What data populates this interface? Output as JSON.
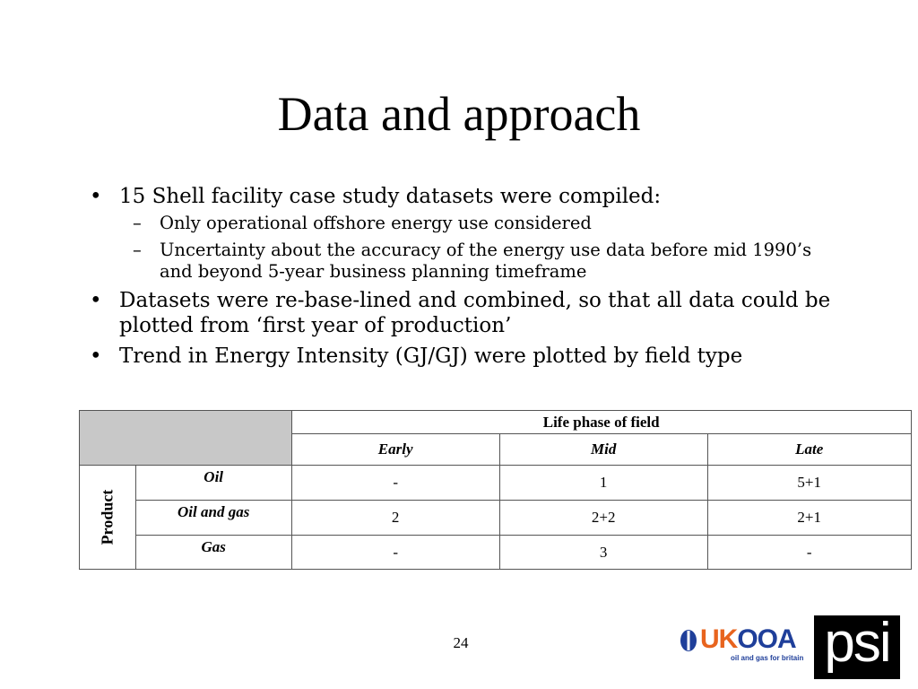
{
  "title": "Data and approach",
  "bullets": [
    {
      "text": "15 Shell facility case study datasets were compiled:",
      "sub": [
        "Only operational offshore energy use considered",
        "Uncertainty about the accuracy of the energy use data before mid 1990’s and beyond 5-year business planning timeframe"
      ]
    },
    {
      "text": "Datasets were re-base-lined and combined, so that all data could be plotted from ‘first year of production’"
    },
    {
      "text": "Trend in Energy Intensity (GJ/GJ) were plotted by field type"
    }
  ],
  "table": {
    "group_header": "Life phase of field",
    "columns": [
      "Early",
      "Mid",
      "Late"
    ],
    "row_group": "Product",
    "rows": [
      {
        "label": "Oil",
        "cells": [
          "-",
          "1",
          "5+1"
        ]
      },
      {
        "label": "Oil and gas",
        "cells": [
          "2",
          "2+2",
          "2+1"
        ]
      },
      {
        "label": "Gas",
        "cells": [
          "-",
          "3",
          "-"
        ]
      }
    ]
  },
  "page_number": "24",
  "logos": {
    "ukooa": {
      "uk": "UK",
      "ooa": "OOA",
      "tagline": "oil and gas for britain"
    },
    "psi": "psi"
  }
}
